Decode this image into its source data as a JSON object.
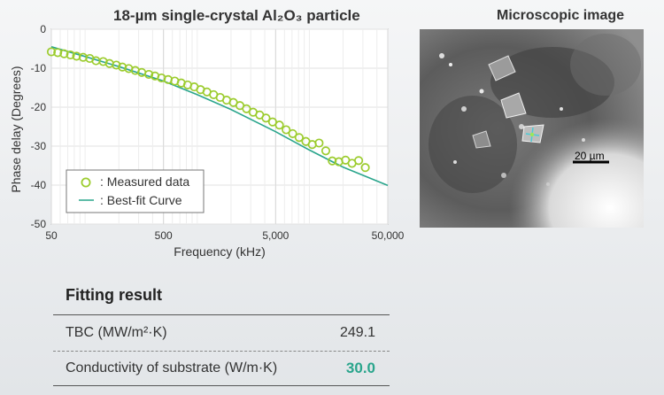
{
  "chart_data": {
    "type": "scatter",
    "title": "18-µm single-crystal Al₂O₃ particle",
    "xlabel": "Frequency (kHz)",
    "ylabel": "Phase delay (Degrees)",
    "xscale": "log",
    "xlim": [
      50,
      50000
    ],
    "ylim": [
      -50,
      0
    ],
    "xticks": [
      "50",
      "500",
      "5,000",
      "50,000"
    ],
    "yticks": [
      "0",
      "-10",
      "-20",
      "-30",
      "-40",
      "-50"
    ],
    "grid": true,
    "legend_position": "bottom-left",
    "series": [
      {
        "name": "Measured data",
        "style": "open-circles",
        "color": "#9ccc2e",
        "x": [
          50,
          57,
          65,
          74,
          84,
          96,
          110,
          125,
          145,
          165,
          190,
          215,
          245,
          280,
          320,
          370,
          420,
          480,
          550,
          630,
          720,
          820,
          940,
          1070,
          1220,
          1400,
          1600,
          1830,
          2100,
          2400,
          2750,
          3150,
          3600,
          4100,
          4700,
          5400,
          6200,
          7100,
          8100,
          9300,
          10600,
          12200,
          14000,
          16000,
          18300,
          21000,
          24000,
          27500,
          31500
        ],
        "y": [
          -5.8,
          -6.0,
          -6.3,
          -6.6,
          -6.9,
          -7.2,
          -7.5,
          -8.1,
          -8.3,
          -8.8,
          -9.2,
          -9.7,
          -10.1,
          -10.6,
          -11.1,
          -11.6,
          -12.0,
          -12.5,
          -12.9,
          -13.3,
          -13.8,
          -14.3,
          -14.8,
          -15.5,
          -16.1,
          -16.8,
          -17.5,
          -18.2,
          -18.8,
          -19.6,
          -20.4,
          -21.3,
          -22.0,
          -22.8,
          -23.8,
          -24.6,
          -25.8,
          -26.8,
          -27.8,
          -28.8,
          -29.6,
          -29.2,
          -31.2,
          -33.8,
          -34.0,
          -33.6,
          -34.4,
          -33.7,
          -35.5
        ]
      },
      {
        "name": "Best-fit Curve",
        "style": "line",
        "color": "#2aa58c",
        "x": [
          50,
          100,
          200,
          500,
          1000,
          2000,
          5000,
          10000,
          20000,
          50000
        ],
        "y": [
          -4.5,
          -7.0,
          -9.6,
          -13.3,
          -16.8,
          -20.6,
          -26.3,
          -31.0,
          -35.4,
          -40.1
        ]
      }
    ]
  },
  "legend": {
    "measured_label": ": Measured data",
    "fit_label": ": Best-fit Curve"
  },
  "micro": {
    "title": "Microscopic image",
    "scale_label": "20 µm"
  },
  "fitting": {
    "title": "Fitting result",
    "rows": [
      {
        "label": "TBC (MW/m²·K)",
        "value": "249.1"
      },
      {
        "label": "Conductivity of substrate (W/m·K)",
        "value": "30.0"
      }
    ]
  }
}
